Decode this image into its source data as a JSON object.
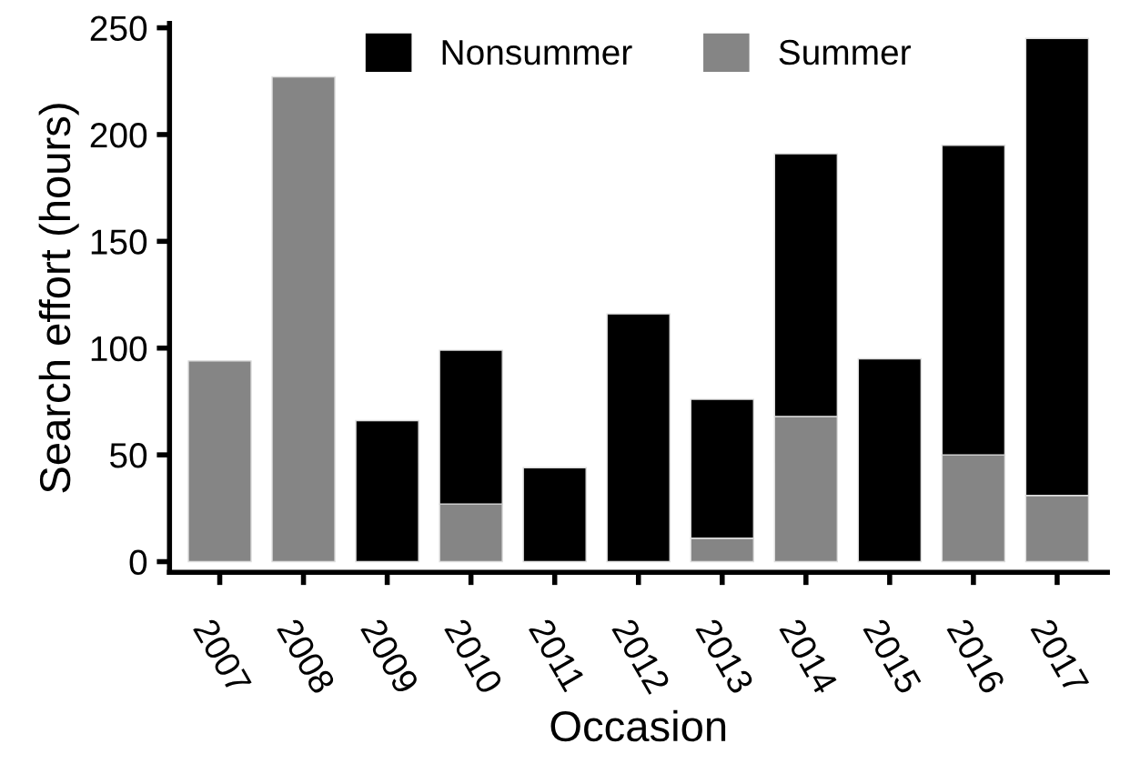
{
  "chart_data": {
    "type": "bar",
    "stacked": true,
    "xlabel": "Occasion",
    "ylabel": "Search effort (hours)",
    "categories": [
      "2007",
      "2008",
      "2009",
      "2010",
      "2011",
      "2012",
      "2013",
      "2014",
      "2015",
      "2016",
      "2017"
    ],
    "series": [
      {
        "name": "Summer",
        "color": "#858585",
        "values": [
          94,
          227,
          null,
          27,
          null,
          null,
          11,
          68,
          null,
          50,
          31
        ]
      },
      {
        "name": "Nonsummer",
        "color": "#000000",
        "values": [
          null,
          null,
          66,
          72,
          44,
          116,
          65,
          123,
          95,
          145,
          214
        ]
      }
    ],
    "ylim": [
      -5,
      252
    ],
    "yticks": [
      0,
      50,
      100,
      150,
      200,
      250
    ],
    "grid": false,
    "legend": "top"
  }
}
